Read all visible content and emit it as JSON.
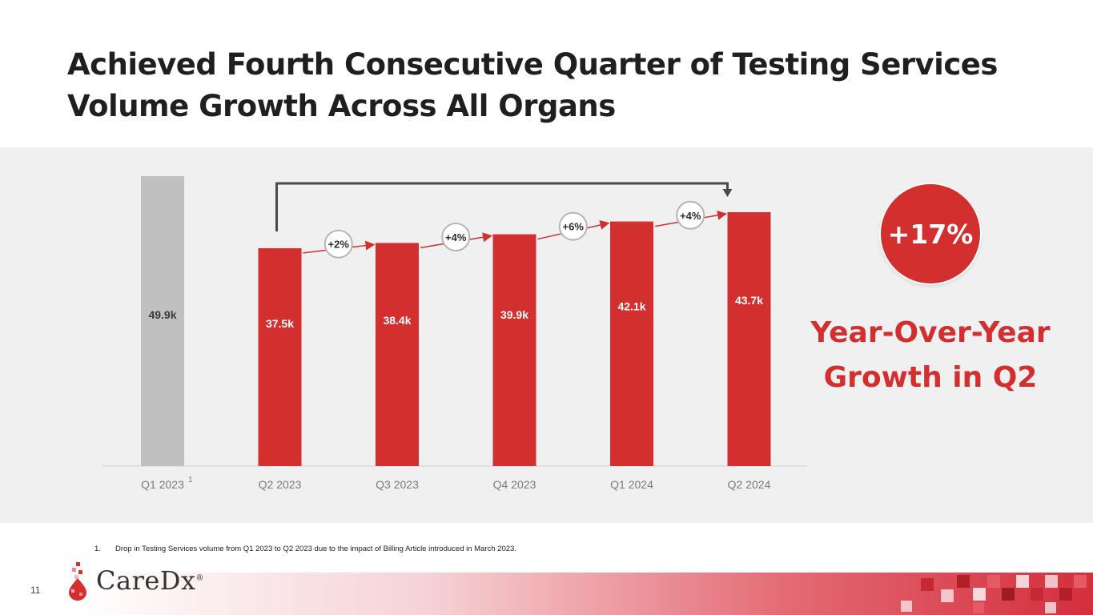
{
  "title": {
    "line1": "Achieved Fourth Consecutive Quarter of Testing Services",
    "line2": "Volume Growth Across All Organs"
  },
  "chart_data": {
    "type": "bar",
    "title": "",
    "categories": [
      "Q1 2023",
      "Q2 2023",
      "Q3 2023",
      "Q4 2023",
      "Q1 2024",
      "Q2 2024"
    ],
    "category_superscripts": [
      "1",
      "",
      "",
      "",
      "",
      ""
    ],
    "values": [
      49.9,
      37.5,
      38.4,
      39.9,
      42.1,
      43.7
    ],
    "value_labels": [
      "49.9k",
      "37.5k",
      "38.4k",
      "39.9k",
      "42.1k",
      "43.7k"
    ],
    "bar_colors": [
      "#c0c0c0",
      "#d32f2f",
      "#d32f2f",
      "#d32f2f",
      "#d32f2f",
      "#d32f2f"
    ],
    "growth_labels": [
      "+2%",
      "+4%",
      "+6%",
      "+4%"
    ],
    "xlabel": "",
    "ylabel": "",
    "ylim": [
      0,
      49.9
    ],
    "grid": false
  },
  "highlight": {
    "value": "+17%",
    "caption_line1": "Year-Over-Year",
    "caption_line2": "Growth in Q2"
  },
  "footnote": {
    "number": "1.",
    "text": "Drop in Testing Services volume from Q1 2023 to Q2 2023 due to the impact of Billing Article introduced in March 2023."
  },
  "page_number": "11",
  "logo": {
    "name": "CareDx",
    "mark": "®"
  },
  "colors": {
    "accent": "#d32f2f",
    "gray_bar": "#c0c0c0",
    "band": "#f0f0f0"
  }
}
